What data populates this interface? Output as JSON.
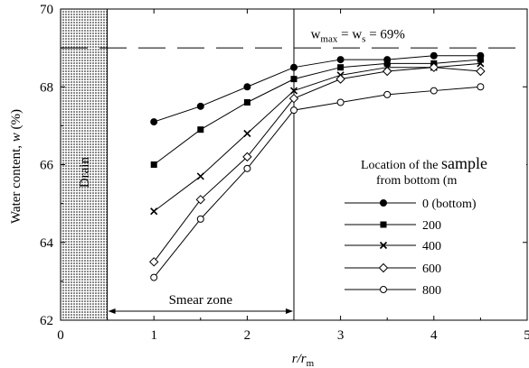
{
  "chart_data": {
    "type": "line",
    "xlabel": "r/r",
    "xlabel_sub": "m",
    "ylabel": "Water content, ",
    "ylabel_var": "w",
    "ylabel_unit": " (%)",
    "xlim": [
      0,
      5
    ],
    "ylim": [
      62,
      70
    ],
    "x_ticks": [
      "0",
      "1",
      "2",
      "3",
      "4",
      "5"
    ],
    "y_ticks": [
      "62",
      "64",
      "66",
      "68",
      "70"
    ],
    "grid": false,
    "x": [
      1.0,
      1.5,
      2.0,
      2.5,
      3.0,
      3.5,
      4.0,
      4.5
    ],
    "series": [
      {
        "name": "0 (bottom)",
        "marker": "circle-filled",
        "values": [
          67.1,
          67.5,
          68.0,
          68.5,
          68.7,
          68.7,
          68.8,
          68.8
        ]
      },
      {
        "name": "200",
        "marker": "square-filled",
        "values": [
          66.0,
          66.9,
          67.6,
          68.2,
          68.5,
          68.6,
          68.6,
          68.7
        ]
      },
      {
        "name": "400",
        "marker": "cross",
        "values": [
          64.8,
          65.7,
          66.8,
          67.9,
          68.3,
          68.5,
          68.5,
          68.6
        ]
      },
      {
        "name": "600",
        "marker": "diamond-open",
        "values": [
          63.5,
          65.1,
          66.2,
          67.7,
          68.2,
          68.4,
          68.5,
          68.4
        ]
      },
      {
        "name": "800",
        "marker": "circle-open",
        "values": [
          63.1,
          64.6,
          65.9,
          67.4,
          67.6,
          67.8,
          67.9,
          68.0
        ]
      }
    ],
    "legend": {
      "title_line1_a": "Location of the ",
      "title_line1_b": "sample",
      "title_line2": "from bottom (m",
      "placement": "center-right"
    },
    "annotations": {
      "drain_label": "Drain",
      "drain_x_range": [
        0,
        0.5
      ],
      "smear_zone_label": "Smear zone",
      "smear_zone_range": [
        0.5,
        2.5
      ],
      "ws_line_value": 69,
      "ws_label_w": "w",
      "ws_label_sub1": "max",
      "ws_label_mid": " = w",
      "ws_label_sub2": "s",
      "ws_label_end": " = 69%"
    }
  }
}
